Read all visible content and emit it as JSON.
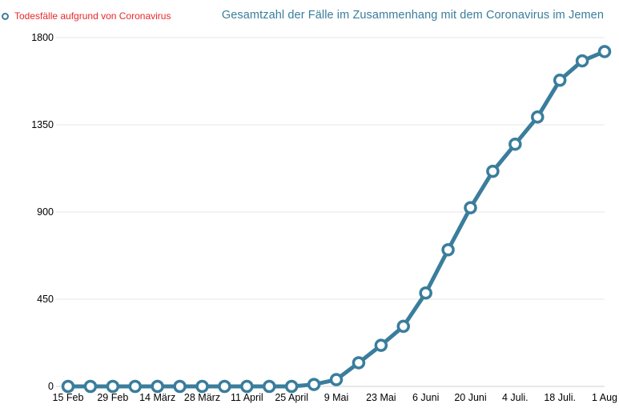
{
  "legend": {
    "label": "Todesfälle aufgrund von Coronavirus",
    "icon": "circle-marker-icon"
  },
  "colors": {
    "line": "#3a7d9c",
    "legend_text": "#e8282a",
    "title": "#3a7d9c",
    "grid": "#e6e6e6"
  },
  "chart_data": {
    "type": "line",
    "title": "Gesamtzahl der Fälle im Zusammenhang mit dem Coronavirus im Jemen",
    "xlabel": "",
    "ylabel": "",
    "x_ticks": [
      "15 Feb",
      "29 Feb",
      "14 März",
      "28 März",
      "11 April",
      "25 April",
      "9 Mai",
      "23 Mai",
      "6 Juni",
      "20 Juni",
      "4 Juli.",
      "18 Juli.",
      "1 Aug"
    ],
    "y_ticks": [
      0,
      450,
      900,
      1350,
      1800
    ],
    "ylim": [
      0,
      1800
    ],
    "grid": true,
    "legend_position": "top-left",
    "series": [
      {
        "name": "Todesfälle aufgrund von Coronavirus",
        "x": [
          "2020-02-15",
          "2020-02-22",
          "2020-02-29",
          "2020-03-07",
          "2020-03-14",
          "2020-03-21",
          "2020-03-28",
          "2020-04-04",
          "2020-04-11",
          "2020-04-18",
          "2020-04-25",
          "2020-05-02",
          "2020-05-09",
          "2020-05-16",
          "2020-05-23",
          "2020-05-30",
          "2020-06-06",
          "2020-06-13",
          "2020-06-20",
          "2020-06-27",
          "2020-07-04",
          "2020-07-11",
          "2020-07-18",
          "2020-07-25",
          "2020-08-01"
        ],
        "values": [
          0,
          0,
          0,
          0,
          0,
          0,
          0,
          0,
          0,
          0,
          0,
          10,
          35,
          122,
          212,
          310,
          482,
          705,
          922,
          1110,
          1250,
          1390,
          1580,
          1680,
          1728
        ]
      }
    ]
  }
}
